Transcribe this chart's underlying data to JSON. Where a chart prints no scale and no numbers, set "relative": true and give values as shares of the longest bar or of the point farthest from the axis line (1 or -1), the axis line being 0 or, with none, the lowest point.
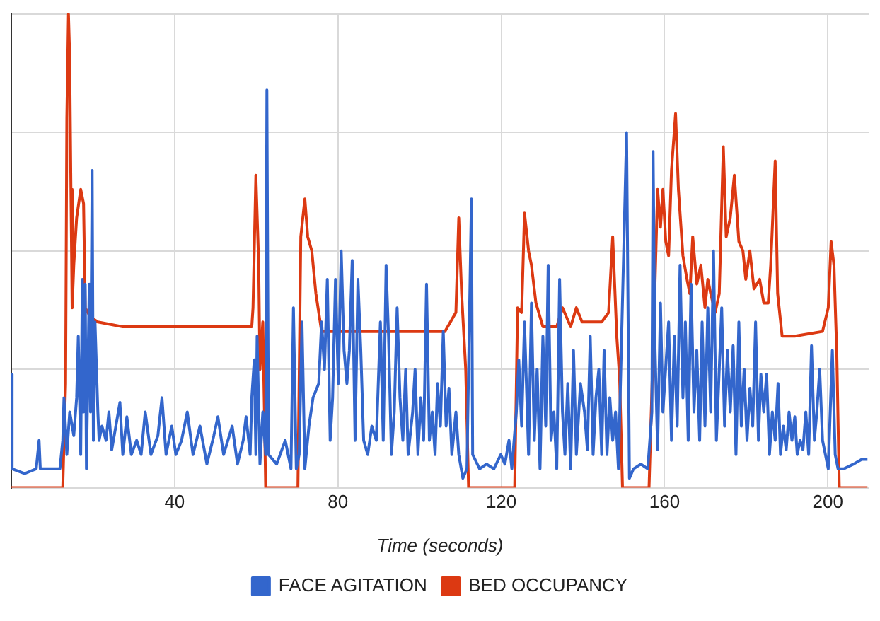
{
  "chart_data": {
    "type": "line",
    "xlabel": "Time (seconds)",
    "relative": true,
    "xlim": [
      0,
      210
    ],
    "xticks": [
      40,
      80,
      120,
      160,
      200
    ],
    "grid": true,
    "legend": "bottom",
    "marker": "none",
    "line_style": "solid",
    "series": [
      {
        "name": "FACE AGITATION",
        "color": "#3366cc",
        "x": [
          0,
          0.2,
          3.3,
          6.1,
          6.8,
          7.1,
          11.9,
          12.6,
          12.9,
          13.6,
          14.3,
          15.3,
          16.0,
          16.4,
          17.0,
          17.4,
          17.7,
          18.1,
          18.4,
          19.1,
          19.4,
          19.8,
          20.1,
          20.5,
          21.2,
          21.5,
          22.2,
          23.2,
          23.9,
          24.6,
          25.6,
          26.6,
          27.3,
          28.3,
          29.4,
          30.7,
          31.8,
          32.8,
          34.2,
          35.9,
          36.9,
          37.9,
          39.3,
          40.3,
          41.7,
          43.1,
          44.5,
          46.2,
          47.9,
          49.6,
          50.6,
          52.0,
          54.1,
          55.4,
          56.8,
          57.5,
          58.5,
          58.9,
          59.5,
          59.9,
          60.2,
          60.9,
          61.6,
          62.3,
          62.6,
          63.0,
          65.0,
          67.1,
          68.5,
          69.1,
          69.8,
          70.5,
          71.2,
          71.9,
          72.9,
          73.9,
          75.3,
          76.0,
          76.7,
          77.4,
          78.1,
          78.7,
          79.4,
          80.1,
          80.8,
          81.5,
          82.2,
          82.8,
          83.5,
          84.2,
          84.9,
          85.6,
          86.3,
          87.3,
          88.3,
          89.4,
          90.4,
          91.1,
          91.8,
          92.4,
          93.1,
          93.8,
          94.5,
          95.2,
          95.9,
          96.6,
          97.2,
          98.3,
          98.9,
          99.6,
          100.3,
          101.0,
          101.7,
          102.4,
          103.1,
          103.8,
          104.4,
          105.1,
          105.8,
          106.5,
          107.2,
          107.9,
          108.9,
          109.6,
          110.6,
          111.6,
          112.7,
          113.0,
          114.7,
          116.4,
          118.2,
          119.9,
          120.9,
          121.9,
          122.6,
          123.7,
          124.3,
          125.0,
          125.7,
          126.7,
          127.4,
          128.1,
          128.8,
          129.5,
          130.2,
          130.9,
          131.5,
          132.2,
          132.9,
          133.6,
          134.3,
          135.0,
          135.6,
          136.3,
          137.0,
          137.7,
          138.4,
          139.4,
          140.4,
          141.1,
          141.8,
          142.5,
          143.2,
          143.9,
          144.6,
          145.2,
          145.9,
          146.6,
          147.3,
          148.0,
          148.7,
          150.7,
          151.4,
          152.4,
          154.2,
          155.9,
          156.9,
          157.2,
          157.6,
          158.3,
          159.0,
          159.6,
          161.0,
          161.7,
          162.4,
          163.1,
          163.8,
          164.5,
          165.1,
          165.8,
          166.5,
          167.2,
          167.9,
          168.6,
          169.2,
          169.9,
          170.6,
          171.3,
          172.0,
          172.7,
          173.4,
          174.0,
          174.7,
          175.4,
          176.1,
          176.8,
          177.5,
          178.2,
          178.8,
          179.5,
          180.2,
          180.9,
          181.6,
          182.3,
          183.0,
          183.6,
          184.3,
          185.0,
          185.7,
          186.4,
          187.1,
          187.8,
          188.4,
          189.1,
          189.8,
          190.5,
          191.2,
          191.9,
          192.5,
          193.2,
          193.9,
          194.6,
          195.3,
          196.0,
          196.7,
          197.3,
          198.0,
          198.7,
          199.4,
          200.1,
          201.1,
          201.8,
          202.5,
          203.9,
          206.3,
          208.3,
          209.7
        ],
        "values": [
          0.24,
          0.04,
          0.03,
          0.04,
          0.1,
          0.04,
          0.04,
          0.1,
          0.19,
          0.07,
          0.16,
          0.11,
          0.19,
          0.32,
          0.07,
          0.44,
          0.16,
          0.43,
          0.04,
          0.43,
          0.16,
          0.67,
          0.1,
          0.35,
          0.16,
          0.1,
          0.13,
          0.1,
          0.16,
          0.08,
          0.13,
          0.18,
          0.07,
          0.15,
          0.07,
          0.1,
          0.07,
          0.16,
          0.07,
          0.11,
          0.19,
          0.07,
          0.13,
          0.07,
          0.1,
          0.16,
          0.07,
          0.13,
          0.05,
          0.11,
          0.15,
          0.07,
          0.13,
          0.05,
          0.1,
          0.15,
          0.07,
          0.19,
          0.27,
          0.07,
          0.32,
          0.05,
          0.16,
          0.07,
          0.84,
          0.07,
          0.05,
          0.1,
          0.04,
          0.38,
          0.04,
          0.07,
          0.35,
          0.04,
          0.13,
          0.19,
          0.22,
          0.35,
          0.25,
          0.44,
          0.1,
          0.19,
          0.44,
          0.22,
          0.5,
          0.29,
          0.22,
          0.29,
          0.48,
          0.1,
          0.44,
          0.29,
          0.1,
          0.07,
          0.13,
          0.1,
          0.35,
          0.1,
          0.47,
          0.32,
          0.07,
          0.16,
          0.38,
          0.19,
          0.1,
          0.25,
          0.07,
          0.16,
          0.25,
          0.07,
          0.19,
          0.1,
          0.43,
          0.1,
          0.16,
          0.07,
          0.22,
          0.13,
          0.33,
          0.13,
          0.21,
          0.07,
          0.16,
          0.07,
          0.02,
          0.04,
          0.61,
          0.07,
          0.04,
          0.05,
          0.04,
          0.07,
          0.05,
          0.1,
          0.04,
          0.16,
          0.27,
          0.13,
          0.35,
          0.07,
          0.39,
          0.1,
          0.25,
          0.04,
          0.32,
          0.13,
          0.47,
          0.1,
          0.16,
          0.04,
          0.44,
          0.16,
          0.07,
          0.22,
          0.04,
          0.29,
          0.07,
          0.22,
          0.16,
          0.08,
          0.32,
          0.07,
          0.19,
          0.25,
          0.07,
          0.29,
          0.07,
          0.19,
          0.1,
          0.16,
          0.04,
          0.75,
          0.02,
          0.04,
          0.05,
          0.04,
          0.16,
          0.71,
          0.32,
          0.08,
          0.39,
          0.16,
          0.35,
          0.1,
          0.32,
          0.13,
          0.47,
          0.19,
          0.35,
          0.1,
          0.43,
          0.16,
          0.29,
          0.1,
          0.35,
          0.13,
          0.38,
          0.16,
          0.5,
          0.1,
          0.25,
          0.38,
          0.13,
          0.29,
          0.16,
          0.3,
          0.07,
          0.35,
          0.13,
          0.25,
          0.1,
          0.21,
          0.13,
          0.35,
          0.1,
          0.24,
          0.16,
          0.24,
          0.07,
          0.16,
          0.1,
          0.22,
          0.07,
          0.13,
          0.08,
          0.16,
          0.1,
          0.15,
          0.07,
          0.1,
          0.08,
          0.16,
          0.07,
          0.3,
          0.1,
          0.16,
          0.25,
          0.1,
          0.07,
          0.04,
          0.29,
          0.07,
          0.04,
          0.04,
          0.05,
          0.06,
          0.06
        ]
      },
      {
        "name": "BED OCCUPANCY",
        "color": "#dc3912",
        "x": [
          0,
          12.6,
          13.3,
          13.6,
          14.0,
          14.3,
          14.6,
          14.9,
          15.3,
          16.0,
          17.0,
          17.7,
          18.1,
          19.4,
          21.2,
          27.3,
          37.6,
          47.9,
          58.9,
          59.2,
          59.9,
          60.6,
          60.9,
          61.6,
          62.0,
          62.3,
          70.2,
          70.9,
          71.9,
          72.6,
          73.6,
          74.6,
          76.0,
          85.6,
          95.9,
          106.2,
          108.9,
          109.6,
          110.3,
          111.3,
          112.0,
          123.3,
          124.0,
          125.0,
          125.7,
          126.7,
          127.4,
          128.5,
          130.2,
          133.6,
          135.0,
          136.0,
          137.0,
          138.4,
          139.8,
          142.2,
          144.6,
          146.3,
          147.3,
          148.3,
          149.0,
          149.7,
          156.2,
          157.6,
          158.3,
          159.0,
          159.6,
          160.3,
          161.0,
          161.7,
          162.7,
          163.4,
          164.5,
          165.5,
          166.2,
          166.9,
          167.9,
          168.9,
          169.9,
          170.6,
          171.3,
          172.4,
          173.4,
          174.4,
          175.1,
          176.1,
          177.1,
          178.2,
          179.2,
          179.9,
          180.9,
          181.9,
          183.3,
          184.3,
          185.4,
          186.0,
          186.7,
          187.1,
          187.7,
          188.8,
          191.9,
          198.7,
          200.1,
          200.8,
          201.5,
          202.2,
          202.8,
          209.7
        ],
        "values": [
          0,
          0,
          0.22,
          0.78,
          1.0,
          0.91,
          0.63,
          0.38,
          0.47,
          0.57,
          0.63,
          0.6,
          0.38,
          0.36,
          0.35,
          0.34,
          0.34,
          0.34,
          0.34,
          0.38,
          0.66,
          0.47,
          0.25,
          0.35,
          0.16,
          0,
          0,
          0.53,
          0.61,
          0.53,
          0.5,
          0.41,
          0.33,
          0.33,
          0.33,
          0.33,
          0.37,
          0.57,
          0.41,
          0.25,
          0,
          0,
          0.38,
          0.37,
          0.58,
          0.5,
          0.47,
          0.39,
          0.34,
          0.34,
          0.38,
          0.36,
          0.34,
          0.38,
          0.35,
          0.35,
          0.35,
          0.37,
          0.53,
          0.32,
          0.23,
          0,
          0,
          0.41,
          0.63,
          0.55,
          0.63,
          0.52,
          0.49,
          0.67,
          0.79,
          0.63,
          0.49,
          0.44,
          0.41,
          0.53,
          0.43,
          0.47,
          0.38,
          0.44,
          0.41,
          0.37,
          0.41,
          0.72,
          0.53,
          0.57,
          0.66,
          0.52,
          0.5,
          0.44,
          0.5,
          0.42,
          0.44,
          0.39,
          0.39,
          0.47,
          0.61,
          0.69,
          0.41,
          0.32,
          0.32,
          0.33,
          0.38,
          0.52,
          0.47,
          0.28,
          0,
          0
        ]
      }
    ]
  }
}
